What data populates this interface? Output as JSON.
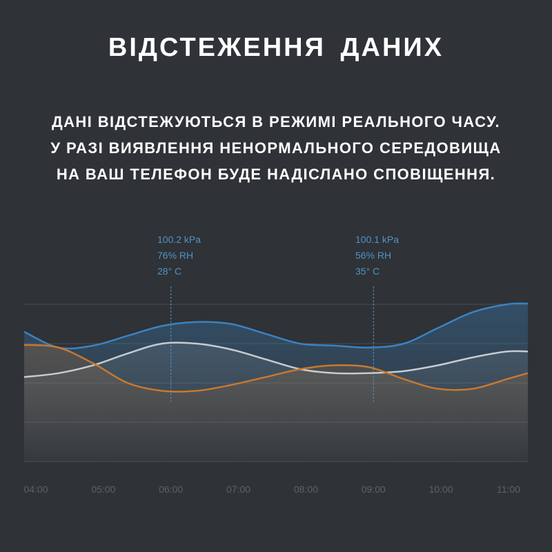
{
  "header": {
    "title": "ВІДСТЕЖЕННЯ  ДАНИХ",
    "subtitle_lines": [
      "ДАНІ ВІДСТЕЖУЮТЬСЯ В РЕЖИМІ РЕАЛЬНОГО ЧАСУ.",
      "У РАЗІ ВИЯВЛЕННЯ НЕНОРМАЛЬНОГО СЕРЕДОВИЩА",
      "НА ВАШ ТЕЛЕФОН БУДЕ НАДІСЛАНО СПОВІЩЕННЯ."
    ]
  },
  "readouts": [
    {
      "time": "06:00",
      "pressure": "100.2 kPa",
      "humidity": "76% RH",
      "temperature": "28° C"
    },
    {
      "time": "09:00",
      "pressure": "100.1 kPa",
      "humidity": "56% RH",
      "temperature": "35° C"
    }
  ],
  "chart_data": {
    "type": "area",
    "title": "",
    "xlabel": "",
    "ylabel": "",
    "categories": [
      "04:00",
      "05:00",
      "06:00",
      "07:00",
      "08:00",
      "09:00",
      "10:00",
      "11:00"
    ],
    "x": [
      4.0,
      4.5,
      5.0,
      5.5,
      6.0,
      6.5,
      7.0,
      7.5,
      8.0,
      8.5,
      9.0,
      9.5,
      10.0,
      10.5,
      11.0,
      11.3
    ],
    "ylim": [
      0,
      4
    ],
    "grid": true,
    "series": [
      {
        "color": "#3a83c2",
        "values": [
          3.3,
          2.9,
          2.95,
          3.2,
          3.45,
          3.55,
          3.5,
          3.25,
          3.0,
          2.95,
          2.9,
          3.0,
          3.4,
          3.8,
          4.0,
          4.02
        ]
      },
      {
        "color": "#c6cbd0",
        "values": [
          2.15,
          2.25,
          2.45,
          2.75,
          3.0,
          3.0,
          2.85,
          2.6,
          2.35,
          2.25,
          2.25,
          2.3,
          2.45,
          2.65,
          2.8,
          2.8
        ]
      },
      {
        "color": "#c8792f",
        "values": [
          2.97,
          2.9,
          2.5,
          2.0,
          1.8,
          1.8,
          1.95,
          2.15,
          2.35,
          2.45,
          2.4,
          2.1,
          1.85,
          1.85,
          2.1,
          2.25
        ]
      }
    ]
  }
}
